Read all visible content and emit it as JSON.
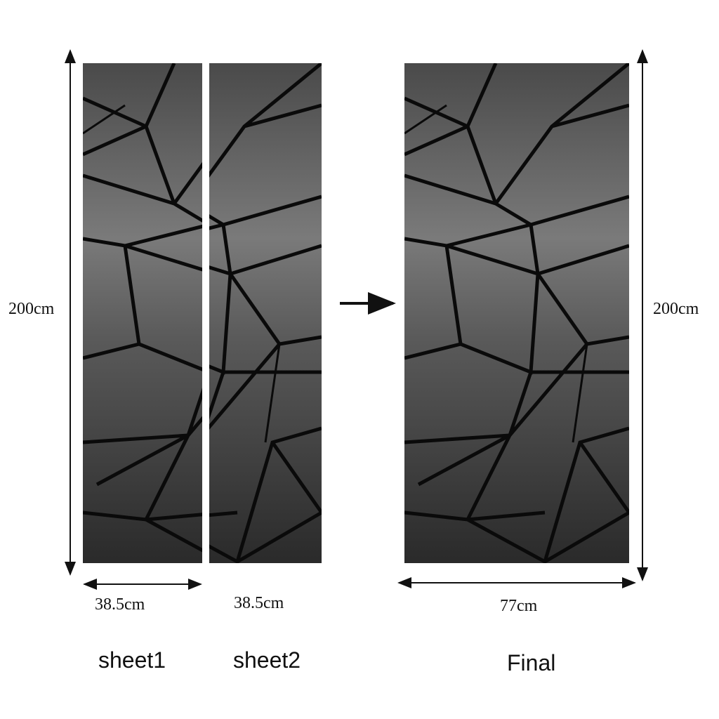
{
  "panels": {
    "sheet1": {
      "label": "sheet1",
      "width": "38.5cm"
    },
    "sheet2": {
      "label": "sheet2",
      "width": "38.5cm"
    },
    "final": {
      "label": "Final",
      "width": "77cm"
    }
  },
  "height_left": "200cm",
  "height_right": "200cm",
  "colors": {
    "panel_light": "#7a7a7a",
    "panel_dark": "#2a2a2a",
    "crack": "#0a0a0a"
  }
}
